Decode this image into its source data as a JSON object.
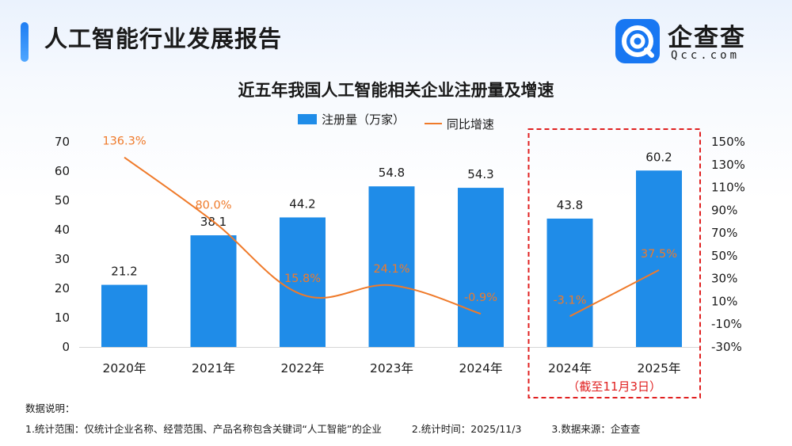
{
  "header": {
    "title": "人工智能行业发展报告"
  },
  "logo": {
    "name": "企查查",
    "domain": "Qcc.com"
  },
  "chart_data": {
    "type": "bar+line",
    "title": "近五年我国人工智能相关企业注册量及增速",
    "categories": [
      "2020年",
      "2021年",
      "2022年",
      "2023年",
      "2024年",
      "2024年",
      "2025年"
    ],
    "series": [
      {
        "name": "注册量（万家）",
        "type": "bar",
        "axis": "left",
        "color": "#1f8ce8",
        "values": [
          21.2,
          38.1,
          44.2,
          54.8,
          54.3,
          43.8,
          60.2
        ],
        "labels": [
          "21.2",
          "38.1",
          "44.2",
          "54.8",
          "54.3",
          "43.8",
          "60.2"
        ]
      },
      {
        "name": "同比增速",
        "type": "line",
        "axis": "right",
        "color": "#ef7a2a",
        "values": [
          136.3,
          80.0,
          15.8,
          24.1,
          -0.9,
          -3.1,
          37.5
        ],
        "labels": [
          "136.3%",
          "80.0%",
          "15.8%",
          "24.1%",
          "-0.9%",
          "-3.1%",
          "37.5%"
        ]
      }
    ],
    "left_axis": {
      "ylim": [
        0,
        70
      ],
      "ticks": [
        "0",
        "10",
        "20",
        "30",
        "40",
        "50",
        "60",
        "70"
      ]
    },
    "right_axis": {
      "ylim": [
        -30,
        150
      ],
      "ticks": [
        "-30%",
        "-10%",
        "10%",
        "30%",
        "50%",
        "70%",
        "90%",
        "110%",
        "130%",
        "150%"
      ]
    },
    "highlight": {
      "note": "（截至11月3日）",
      "color": "#e02020"
    },
    "grid": false,
    "legend": "top-center"
  },
  "notes": {
    "heading": "数据说明：",
    "items": [
      "1.统计范围：仅统计企业名称、经营范围、产品名称包含关键词“人工智能”的企业",
      "2.统计时间：2025/11/3",
      "3.数据来源：企查查"
    ]
  }
}
